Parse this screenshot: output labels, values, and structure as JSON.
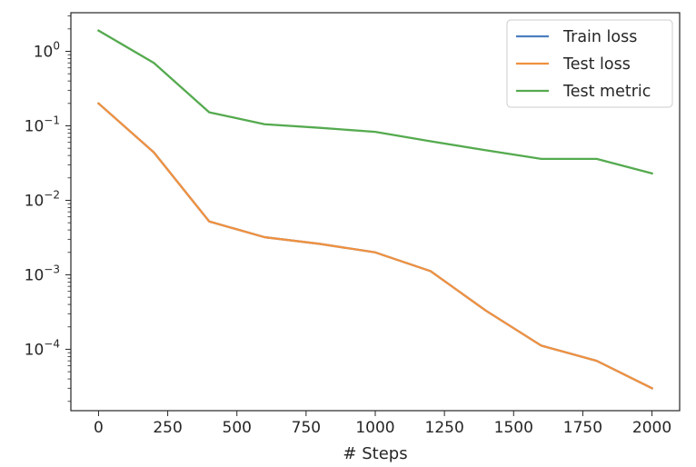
{
  "chart_data": {
    "type": "line",
    "title": "",
    "xlabel": "# Steps",
    "ylabel": "",
    "yscale": "log",
    "grid": false,
    "legend_placement": "top-right",
    "xlim": [
      -100,
      2100
    ],
    "ylim": [
      1.5e-05,
      3.3
    ],
    "x": [
      0,
      200,
      400,
      600,
      800,
      1000,
      1200,
      1400,
      1600,
      1800,
      2000
    ],
    "x_ticks": [
      0,
      250,
      500,
      750,
      1000,
      1250,
      1500,
      1750,
      2000
    ],
    "y_ticks": [
      {
        "value": 0.0001,
        "base": "10",
        "exp": "−4"
      },
      {
        "value": 0.001,
        "base": "10",
        "exp": "−3"
      },
      {
        "value": 0.01,
        "base": "10",
        "exp": "−2"
      },
      {
        "value": 0.1,
        "base": "10",
        "exp": "−1"
      },
      {
        "value": 1,
        "base": "10",
        "exp": "0"
      }
    ],
    "series": [
      {
        "name": "Train loss",
        "color": "#4c7fc0",
        "values": [
          0.2,
          0.044,
          0.0052,
          0.0032,
          0.0026,
          0.002,
          0.00112,
          0.00033,
          0.000112,
          7e-05,
          3e-05
        ]
      },
      {
        "name": "Test loss",
        "color": "#f0913f",
        "values": [
          0.2,
          0.044,
          0.0052,
          0.0032,
          0.0026,
          0.002,
          0.00112,
          0.00033,
          0.000112,
          7e-05,
          3e-05
        ]
      },
      {
        "name": "Test metric",
        "color": "#55aa4f",
        "values": [
          1.9,
          0.7,
          0.152,
          0.105,
          0.094,
          0.083,
          0.062,
          0.047,
          0.036,
          0.036,
          0.023
        ]
      }
    ]
  }
}
